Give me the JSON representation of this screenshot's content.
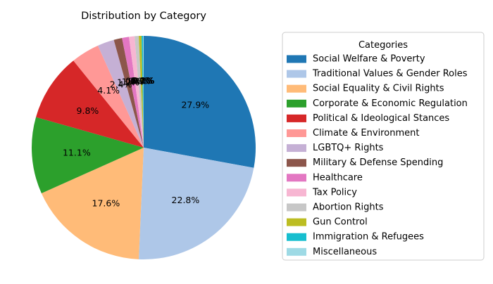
{
  "chart_data": {
    "type": "pie",
    "title": "Distribution by Category",
    "legend_title": "Categories",
    "legend_placement": "right",
    "start_angle_deg": 90,
    "direction": "clockwise",
    "slices": [
      {
        "label": "Social Welfare & Poverty",
        "value": 27.9,
        "pct_label": "27.9%",
        "color": "#1f77b4"
      },
      {
        "label": "Traditional Values & Gender Roles",
        "value": 22.8,
        "pct_label": "22.8%",
        "color": "#aec7e8"
      },
      {
        "label": "Social Equality & Civil Rights",
        "value": 17.6,
        "pct_label": "17.6%",
        "color": "#ffbb78"
      },
      {
        "label": "Corporate & Economic Regulation",
        "value": 11.1,
        "pct_label": "11.1%",
        "color": "#2ca02c"
      },
      {
        "label": "Political & Ideological Stances",
        "value": 9.8,
        "pct_label": "9.8%",
        "color": "#d62728"
      },
      {
        "label": "Climate & Environment",
        "value": 4.1,
        "pct_label": "4.1%",
        "color": "#ff9896"
      },
      {
        "label": "LGBTQ+ Rights",
        "value": 2.4,
        "pct_label": "2.4%",
        "color": "#c5b0d5"
      },
      {
        "label": "Military & Defense Spending",
        "value": 1.2,
        "pct_label": "1.2%",
        "color": "#8c564b"
      },
      {
        "label": "Healthcare",
        "value": 1.0,
        "pct_label": "1.0%",
        "color": "#e377c2"
      },
      {
        "label": "Tax Policy",
        "value": 0.8,
        "pct_label": "0.8%",
        "color": "#f7b6d2"
      },
      {
        "label": "Abortion Rights",
        "value": 0.6,
        "pct_label": "0.6%",
        "color": "#c7c7c7"
      },
      {
        "label": "Gun Control",
        "value": 0.4,
        "pct_label": "0.4%",
        "color": "#bcbd22"
      },
      {
        "label": "Immigration & Refugees",
        "value": 0.2,
        "pct_label": "0.2%",
        "color": "#17becf"
      },
      {
        "label": "Miscellaneous",
        "value": 0.1,
        "pct_label": "0.1%",
        "color": "#9edae5"
      }
    ]
  }
}
